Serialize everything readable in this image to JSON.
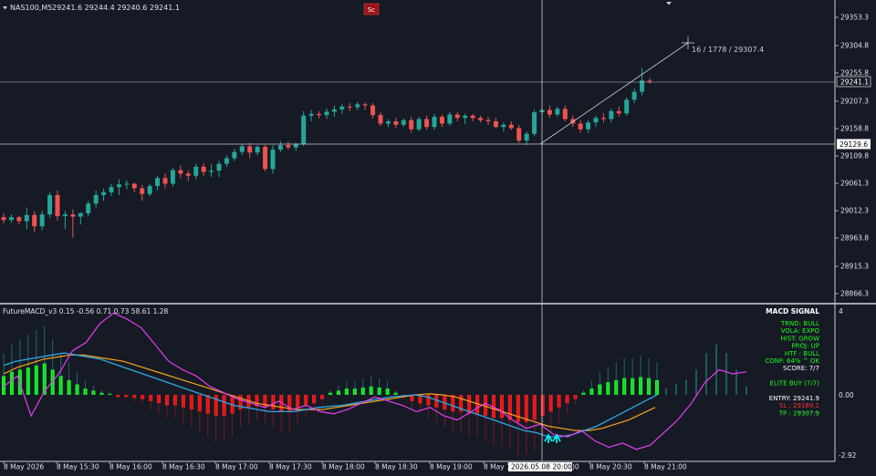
{
  "header": {
    "symbol": "NAS100,M5",
    "ohlc": "29241.6 29244.4 29240.6 29241.1",
    "badge": "Sc"
  },
  "price_axis": {
    "ticks": [
      "29353.3",
      "29304.8",
      "29255.8",
      "29207.3",
      "29158.8",
      "29109.8",
      "29061.3",
      "29012.3",
      "28963.8",
      "28915.3",
      "28866.3"
    ],
    "current_price_label": "29241.1",
    "crosshair_price_label": "29129.6"
  },
  "trend_annotation": "16 / 1778 / 29307.4",
  "indicator": {
    "title": "FutureMACD_v3 0.15 -0.56 0.71 0.73 58.61 1.28",
    "axis": {
      "top": "4",
      "zero": "0.00",
      "bottom": "-2.92"
    },
    "panel": {
      "title": "MACD SIGNAL",
      "rows": [
        {
          "text": "TRND:  BULL",
          "color": "#19ff19"
        },
        {
          "text": "VOLA:  EXPO",
          "color": "#19ff19"
        },
        {
          "text": "HIST:  GROW",
          "color": "#19ff19"
        },
        {
          "text": "PROJ:  UP",
          "color": "#19ff19"
        },
        {
          "text": "HTF :  BULL",
          "color": "#19ff19"
        },
        {
          "text": "CONF: 64%  ^ OK",
          "color": "#19ff19"
        },
        {
          "text": "SCORE: 7/7",
          "color": "#ffffff"
        },
        {
          "text": "",
          "color": "#ffffff"
        },
        {
          "text": "ELITE BUY (7/7)",
          "color": "#19ff19"
        },
        {
          "text": "",
          "color": "#ffffff"
        },
        {
          "text": "ENTRY: 29241.9",
          "color": "#ffffff"
        },
        {
          "text": "SL   : 29189.1",
          "color": "#ff3030"
        },
        {
          "text": "TP   : 29307.9",
          "color": "#19ff19"
        }
      ]
    }
  },
  "time_axis": {
    "labels": [
      "8 May 2026",
      "8 May 15:30",
      "8 May 16:00",
      "8 May 16:30",
      "8 May 17:00",
      "8 May 17:30",
      "8 May 18:00",
      "8 May 18:30",
      "8 May 19:00",
      "8 May 1",
      "8 May 20:30",
      "8 May 21:00"
    ],
    "crosshair_label": "2026.05.08 20:00",
    "crosshair_suffix": ")0"
  },
  "colors": {
    "background": "#161a25",
    "bull": "#26a69a",
    "bear": "#ef5350",
    "hist_bull": "#19ff19",
    "hist_bear": "#ff1a1a",
    "line_magenta": "#e93cf0",
    "line_blue": "#2ea8e6",
    "line_orange": "#f5a31a",
    "arrow": "#00ffff",
    "text": "#c8ccd4"
  },
  "chart_data": {
    "type": "candlestick",
    "symbol": "NAS100",
    "timeframe": "M5",
    "ylim": [
      28850,
      29370
    ],
    "candles": [
      [
        29001,
        29008,
        28990,
        28996
      ],
      [
        28996,
        29006,
        28991,
        29001
      ],
      [
        29001,
        29004,
        28988,
        28994
      ],
      [
        28994,
        29018,
        28980,
        29005
      ],
      [
        29005,
        29012,
        28975,
        28985
      ],
      [
        28985,
        29012,
        28978,
        29006
      ],
      [
        29006,
        29045,
        29000,
        29040
      ],
      [
        29040,
        29048,
        28995,
        29003
      ],
      [
        29003,
        29012,
        28980,
        29006
      ],
      [
        29006,
        29015,
        28965,
        29002
      ],
      [
        29002,
        29010,
        28988,
        29008
      ],
      [
        29008,
        29030,
        29002,
        29025
      ],
      [
        29025,
        29048,
        29018,
        29040
      ],
      [
        29040,
        29052,
        29030,
        29045
      ],
      [
        29045,
        29060,
        29038,
        29054
      ],
      [
        29054,
        29068,
        29040,
        29059
      ],
      [
        29059,
        29066,
        29050,
        29060
      ],
      [
        29060,
        29062,
        29045,
        29052
      ],
      [
        29052,
        29058,
        29030,
        29042
      ],
      [
        29042,
        29060,
        29038,
        29056
      ],
      [
        29056,
        29074,
        29048,
        29070
      ],
      [
        29070,
        29078,
        29052,
        29060
      ],
      [
        29060,
        29088,
        29055,
        29084
      ],
      [
        29084,
        29092,
        29070,
        29078
      ],
      [
        29078,
        29083,
        29065,
        29074
      ],
      [
        29074,
        29095,
        29068,
        29090
      ],
      [
        29090,
        29096,
        29074,
        29081
      ],
      [
        29081,
        29094,
        29072,
        29083
      ],
      [
        29083,
        29100,
        29072,
        29095
      ],
      [
        29095,
        29110,
        29090,
        29105
      ],
      [
        29105,
        29122,
        29100,
        29116
      ],
      [
        29116,
        29130,
        29110,
        29126
      ],
      [
        29126,
        29132,
        29105,
        29115
      ],
      [
        29115,
        29128,
        29110,
        29125
      ],
      [
        29125,
        29128,
        29082,
        29086
      ],
      [
        29086,
        29128,
        29078,
        29120
      ],
      [
        29120,
        29135,
        29116,
        29128
      ],
      [
        29128,
        29134,
        29120,
        29124
      ],
      [
        29124,
        29132,
        29118,
        29130
      ],
      [
        29130,
        29188,
        29126,
        29180
      ],
      [
        29180,
        29190,
        29170,
        29183
      ],
      [
        29183,
        29188,
        29175,
        29181
      ],
      [
        29181,
        29193,
        29174,
        29187
      ],
      [
        29187,
        29198,
        29178,
        29191
      ],
      [
        29191,
        29200,
        29183,
        29196
      ],
      [
        29196,
        29202,
        29188,
        29195
      ],
      [
        29195,
        29204,
        29190,
        29200
      ],
      [
        29200,
        29203,
        29190,
        29198
      ],
      [
        29198,
        29202,
        29175,
        29181
      ],
      [
        29181,
        29186,
        29162,
        29166
      ],
      [
        29166,
        29174,
        29160,
        29170
      ],
      [
        29170,
        29176,
        29158,
        29164
      ],
      [
        29164,
        29175,
        29160,
        29172
      ],
      [
        29172,
        29178,
        29150,
        29156
      ],
      [
        29156,
        29178,
        29152,
        29174
      ],
      [
        29174,
        29180,
        29155,
        29160
      ],
      [
        29160,
        29183,
        29155,
        29178
      ],
      [
        29178,
        29182,
        29160,
        29166
      ],
      [
        29166,
        29186,
        29162,
        29182
      ],
      [
        29182,
        29186,
        29170,
        29176
      ],
      [
        29176,
        29184,
        29165,
        29180
      ],
      [
        29180,
        29183,
        29170,
        29176
      ],
      [
        29176,
        29180,
        29168,
        29172
      ],
      [
        29172,
        29178,
        29164,
        29170
      ],
      [
        29170,
        29176,
        29158,
        29160
      ],
      [
        29160,
        29168,
        29152,
        29164
      ],
      [
        29164,
        29170,
        29155,
        29158
      ],
      [
        29158,
        29164,
        29132,
        29136
      ],
      [
        29136,
        29152,
        29128,
        29148
      ],
      [
        29148,
        29190,
        29144,
        29186
      ],
      [
        29186,
        29196,
        29180,
        29190
      ],
      [
        29190,
        29198,
        29176,
        29182
      ],
      [
        29182,
        29196,
        29178,
        29192
      ],
      [
        29192,
        29198,
        29170,
        29174
      ],
      [
        29174,
        29180,
        29160,
        29166
      ],
      [
        29166,
        29172,
        29150,
        29156
      ],
      [
        29156,
        29172,
        29150,
        29168
      ],
      [
        29168,
        29180,
        29160,
        29176
      ],
      [
        29176,
        29184,
        29168,
        29174
      ],
      [
        29174,
        29192,
        29168,
        29188
      ],
      [
        29188,
        29196,
        29178,
        29184
      ],
      [
        29184,
        29212,
        29180,
        29208
      ],
      [
        29208,
        29228,
        29202,
        29222
      ],
      [
        29222,
        29264,
        29216,
        29242
      ],
      [
        29242,
        29246,
        29236,
        29241
      ]
    ],
    "hist": [
      0.9,
      1.1,
      1.2,
      1.3,
      1.4,
      1.5,
      1.2,
      0.9,
      0.7,
      0.5,
      0.3,
      0.2,
      0.1,
      0.05,
      -0.1,
      -0.1,
      -0.15,
      -0.2,
      -0.3,
      -0.4,
      -0.5,
      -0.5,
      -0.6,
      -0.7,
      -0.8,
      -0.9,
      -1.0,
      -1.0,
      -0.9,
      -0.7,
      -0.6,
      -0.55,
      -0.6,
      -0.7,
      -0.8,
      -0.8,
      -0.6,
      -0.5,
      -0.4,
      -0.2,
      0.1,
      0.2,
      0.3,
      0.3,
      0.35,
      0.4,
      0.35,
      0.3,
      0.1,
      -0.1,
      -0.3,
      -0.4,
      -0.5,
      -0.6,
      -0.7,
      -0.8,
      -0.8,
      -0.9,
      -0.9,
      -1.0,
      -1.1,
      -1.1,
      -1.2,
      -1.3,
      -1.3,
      -1.2,
      -1.0,
      -0.8,
      -0.6,
      -0.4,
      -0.2,
      0.1,
      0.3,
      0.5,
      0.6,
      0.7,
      0.8,
      0.8,
      0.85,
      0.8,
      0.7
    ],
    "hist_future": [
      0.3,
      0.5,
      0.7,
      1.2,
      2.0,
      2.4,
      2.0,
      1.2,
      0.4
    ],
    "macd_line": [
      1.4,
      1.6,
      1.7,
      1.8,
      1.9,
      2.0,
      1.9,
      1.8,
      1.7,
      1.5,
      1.3,
      1.1,
      0.9,
      0.7,
      0.5,
      0.3,
      0.1,
      -0.1,
      -0.3,
      -0.5,
      -0.6,
      -0.7,
      -0.8,
      -0.8,
      -0.8,
      -0.7,
      -0.6,
      -0.55,
      -0.5,
      -0.4,
      -0.3,
      -0.2,
      -0.1,
      -0.05,
      0.0,
      -0.1,
      -0.3,
      -0.5,
      -0.7,
      -0.9,
      -1.1,
      -1.3,
      -1.5,
      -1.7,
      -1.8,
      -2.0,
      -2.0,
      -1.9,
      -1.7,
      -1.5,
      -1.2,
      -0.9,
      -0.6,
      -0.3,
      0.0
    ],
    "signal_line": [
      1.0,
      1.3,
      1.5,
      1.7,
      1.8,
      1.9,
      1.9,
      1.8,
      1.7,
      1.6,
      1.4,
      1.2,
      1.0,
      0.8,
      0.6,
      0.4,
      0.2,
      0.0,
      -0.2,
      -0.4,
      -0.5,
      -0.6,
      -0.7,
      -0.7,
      -0.7,
      -0.6,
      -0.5,
      -0.4,
      -0.3,
      -0.2,
      -0.1,
      0.0,
      0.05,
      0.0,
      -0.1,
      -0.3,
      -0.5,
      -0.7,
      -0.9,
      -1.1,
      -1.3,
      -1.5,
      -1.6,
      -1.7,
      -1.7,
      -1.6,
      -1.4,
      -1.2,
      -0.9,
      -0.6
    ],
    "oscillator_line": [
      0.4,
      0.9,
      -1.0,
      0.2,
      1.0,
      2.1,
      2.5,
      3.4,
      3.9,
      3.6,
      3.2,
      2.4,
      1.6,
      1.2,
      0.9,
      0.4,
      0.1,
      -0.2,
      -0.4,
      -0.6,
      -0.3,
      -0.7,
      -0.5,
      -0.8,
      -0.9,
      -0.7,
      -0.4,
      -0.1,
      -0.3,
      -0.5,
      -0.8,
      -0.6,
      -1.0,
      -1.2,
      -0.8,
      -0.4,
      -0.7,
      -1.2,
      -1.6,
      -1.4,
      -1.9,
      -2.0,
      -1.7,
      -2.2,
      -2.5,
      -2.3,
      -2.6,
      -2.4,
      -1.8,
      -1.2,
      -0.4,
      0.6,
      1.2,
      1.0,
      1.1
    ]
  }
}
